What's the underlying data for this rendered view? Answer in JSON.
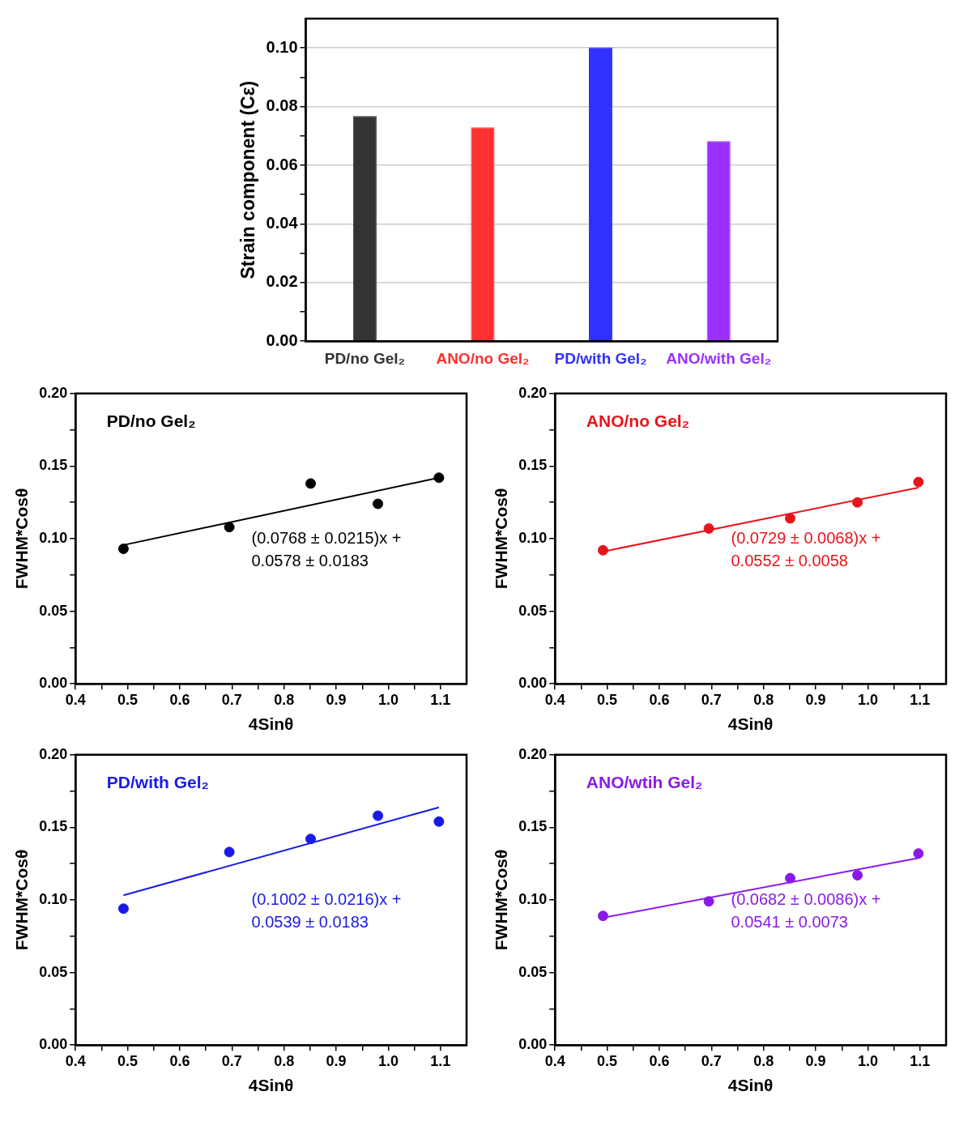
{
  "chart_data": [
    {
      "type": "bar",
      "ylabel": "Strain component (Cε)",
      "categories": [
        "PD/no Gel₂",
        "ANO/no Gel₂",
        "PD/with Gel₂",
        "ANO/with Gel₂"
      ],
      "values": [
        0.0768,
        0.0729,
        0.1002,
        0.0682
      ],
      "colors": [
        "#333333",
        "#ff3030",
        "#3030ff",
        "#9a30ff"
      ],
      "ylim": [
        0,
        0.11
      ],
      "yticks": [
        {
          "value": 0,
          "label": "0.00"
        },
        {
          "value": 0.01,
          "label": null
        },
        {
          "value": 0.02,
          "label": "0.02"
        },
        {
          "value": 0.03,
          "label": null
        },
        {
          "value": 0.04,
          "label": "0.04"
        },
        {
          "value": 0.05,
          "label": null
        },
        {
          "value": 0.06,
          "label": "0.06"
        },
        {
          "value": 0.07,
          "label": null
        },
        {
          "value": 0.08,
          "label": "0.08"
        },
        {
          "value": 0.09,
          "label": null
        },
        {
          "value": 0.1,
          "label": "0.10"
        }
      ],
      "grid": "y"
    },
    {
      "type": "scatter",
      "xlabel": "4Sinθ",
      "ylabel": "FWHM*Cosθ",
      "xlim": [
        0.4,
        1.15
      ],
      "ylim": [
        0,
        0.2
      ],
      "xticks": [
        0.4,
        {
          "value": 0.45,
          "label": null
        },
        0.5,
        {
          "value": 0.55,
          "label": null
        },
        0.6,
        {
          "value": 0.65,
          "label": null
        },
        0.7,
        {
          "value": 0.75,
          "label": null
        },
        0.8,
        {
          "value": 0.85,
          "label": null
        },
        0.9,
        {
          "value": 0.95,
          "label": null
        },
        {
          "value": 1,
          "label": "1.0"
        },
        {
          "value": 1.05,
          "label": null
        },
        1.1
      ],
      "yticks": [
        {
          "value": 0,
          "label": "0.00"
        },
        {
          "value": 0.025,
          "label": null
        },
        {
          "value": 0.05,
          "label": "0.05"
        },
        {
          "value": 0.075,
          "label": null
        },
        {
          "value": 0.1,
          "label": "0.10"
        },
        {
          "value": 0.125,
          "label": null
        },
        {
          "value": 0.15,
          "label": "0.15"
        },
        {
          "value": 0.175,
          "label": null
        },
        {
          "value": 0.2,
          "label": "0.20"
        }
      ],
      "annotations": [
        "PD/no Gel₂",
        "(0.0768 ± 0.0215)x +",
        "0.0578 ± 0.0183"
      ],
      "series": [
        {
          "type": "scatter",
          "marker": "circle",
          "color": "#000000",
          "x": [
            0.492,
            0.695,
            0.851,
            0.98,
            1.097
          ],
          "values": [
            0.093,
            0.108,
            0.138,
            0.124,
            0.142
          ]
        },
        {
          "type": "line",
          "color": "#000000",
          "x": [
            0.492,
            1.097
          ],
          "values": [
            0.0956,
            0.142
          ]
        }
      ]
    },
    {
      "type": "scatter",
      "xlabel": "4Sinθ",
      "ylabel": "FWHM*Cosθ",
      "xlim": [
        0.4,
        1.15
      ],
      "ylim": [
        0,
        0.2
      ],
      "xticks": [
        0.4,
        {
          "value": 0.45,
          "label": null
        },
        0.5,
        {
          "value": 0.55,
          "label": null
        },
        0.6,
        {
          "value": 0.65,
          "label": null
        },
        0.7,
        {
          "value": 0.75,
          "label": null
        },
        0.8,
        {
          "value": 0.85,
          "label": null
        },
        0.9,
        {
          "value": 0.95,
          "label": null
        },
        {
          "value": 1,
          "label": "1.0"
        },
        {
          "value": 1.05,
          "label": null
        },
        1.1
      ],
      "yticks": [
        {
          "value": 0,
          "label": "0.00"
        },
        {
          "value": 0.025,
          "label": null
        },
        {
          "value": 0.05,
          "label": "0.05"
        },
        {
          "value": 0.075,
          "label": null
        },
        {
          "value": 0.1,
          "label": "0.10"
        },
        {
          "value": 0.125,
          "label": null
        },
        {
          "value": 0.15,
          "label": "0.15"
        },
        {
          "value": 0.175,
          "label": null
        },
        {
          "value": 0.2,
          "label": "0.20"
        }
      ],
      "annotations": [
        "ANO/no Gel₂",
        "(0.0729 ± 0.0068)x +",
        "0.0552 ± 0.0058"
      ],
      "series": [
        {
          "type": "scatter",
          "marker": "circle",
          "color": "#e8141c",
          "x": [
            0.492,
            0.695,
            0.851,
            0.98,
            1.097
          ],
          "values": [
            0.092,
            0.107,
            0.114,
            0.125,
            0.139
          ]
        },
        {
          "type": "line",
          "color": "#e8141c",
          "x": [
            0.492,
            1.097
          ],
          "values": [
            0.0911,
            0.1352
          ]
        }
      ]
    },
    {
      "type": "scatter",
      "xlabel": "4Sinθ",
      "ylabel": "FWHM*Cosθ",
      "xlim": [
        0.4,
        1.15
      ],
      "ylim": [
        0,
        0.2
      ],
      "xticks": [
        0.4,
        {
          "value": 0.45,
          "label": null
        },
        0.5,
        {
          "value": 0.55,
          "label": null
        },
        0.6,
        {
          "value": 0.65,
          "label": null
        },
        0.7,
        {
          "value": 0.75,
          "label": null
        },
        0.8,
        {
          "value": 0.85,
          "label": null
        },
        0.9,
        {
          "value": 0.95,
          "label": null
        },
        {
          "value": 1,
          "label": "1.0"
        },
        {
          "value": 1.05,
          "label": null
        },
        1.1
      ],
      "yticks": [
        {
          "value": 0,
          "label": "0.00"
        },
        {
          "value": 0.025,
          "label": null
        },
        {
          "value": 0.05,
          "label": "0.05"
        },
        {
          "value": 0.075,
          "label": null
        },
        {
          "value": 0.1,
          "label": "0.10"
        },
        {
          "value": 0.125,
          "label": null
        },
        {
          "value": 0.15,
          "label": "0.15"
        },
        {
          "value": 0.175,
          "label": null
        },
        {
          "value": 0.2,
          "label": "0.20"
        }
      ],
      "annotations": [
        "PD/with Gel₂",
        "(0.1002 ± 0.0216)x +",
        "0.0539 ± 0.0183"
      ],
      "series": [
        {
          "type": "scatter",
          "marker": "circle",
          "color": "#1a1ae6",
          "x": [
            0.492,
            0.695,
            0.851,
            0.98,
            1.097
          ],
          "values": [
            0.094,
            0.133,
            0.142,
            0.158,
            0.154
          ]
        },
        {
          "type": "line",
          "color": "#1a1ae6",
          "x": [
            0.492,
            1.097
          ],
          "values": [
            0.1032,
            0.1638
          ]
        }
      ]
    },
    {
      "type": "scatter",
      "xlabel": "4Sinθ",
      "ylabel": "FWHM*Cosθ",
      "xlim": [
        0.4,
        1.15
      ],
      "ylim": [
        0,
        0.2
      ],
      "xticks": [
        0.4,
        {
          "value": 0.45,
          "label": null
        },
        0.5,
        {
          "value": 0.55,
          "label": null
        },
        0.6,
        {
          "value": 0.65,
          "label": null
        },
        0.7,
        {
          "value": 0.75,
          "label": null
        },
        0.8,
        {
          "value": 0.85,
          "label": null
        },
        0.9,
        {
          "value": 0.95,
          "label": null
        },
        {
          "value": 1,
          "label": "1.0"
        },
        {
          "value": 1.05,
          "label": null
        },
        1.1
      ],
      "yticks": [
        {
          "value": 0,
          "label": "0.00"
        },
        {
          "value": 0.025,
          "label": null
        },
        {
          "value": 0.05,
          "label": "0.05"
        },
        {
          "value": 0.075,
          "label": null
        },
        {
          "value": 0.1,
          "label": "0.10"
        },
        {
          "value": 0.125,
          "label": null
        },
        {
          "value": 0.15,
          "label": "0.15"
        },
        {
          "value": 0.175,
          "label": null
        },
        {
          "value": 0.2,
          "label": "0.20"
        }
      ],
      "annotations": [
        "ANO/wtih Gel₂",
        "(0.0682 ± 0.0086)x +",
        "0.0541 ± 0.0073"
      ],
      "series": [
        {
          "type": "scatter",
          "marker": "circle",
          "color": "#8a1ae6",
          "x": [
            0.492,
            0.695,
            0.851,
            0.98,
            1.097
          ],
          "values": [
            0.089,
            0.099,
            0.115,
            0.117,
            0.132
          ]
        },
        {
          "type": "line",
          "color": "#8a1ae6",
          "x": [
            0.492,
            1.097
          ],
          "values": [
            0.0877,
            0.1289
          ]
        }
      ]
    }
  ]
}
